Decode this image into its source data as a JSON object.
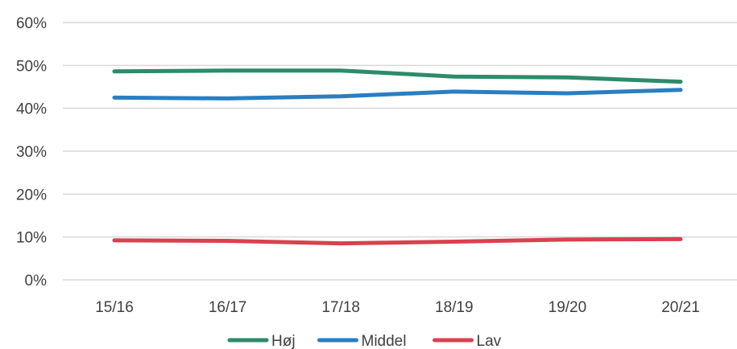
{
  "chart_data": {
    "type": "line",
    "categories": [
      "15/16",
      "16/17",
      "17/18",
      "18/19",
      "19/20",
      "20/21"
    ],
    "ylim": [
      0,
      60
    ],
    "yticks": [
      "0%",
      "10%",
      "20%",
      "30%",
      "40%",
      "50%",
      "60%"
    ],
    "grid": true,
    "legend_position": "bottom",
    "series": [
      {
        "name": "Høj",
        "color": "#2e8b6a",
        "values": [
          48.6,
          48.8,
          48.8,
          47.4,
          47.2,
          46.2
        ]
      },
      {
        "name": "Middel",
        "color": "#2a7ec1",
        "values": [
          42.5,
          42.3,
          42.8,
          43.9,
          43.5,
          44.3
        ]
      },
      {
        "name": "Lav",
        "color": "#d9414f",
        "values": [
          9.2,
          9.1,
          8.5,
          8.9,
          9.4,
          9.5
        ]
      }
    ]
  }
}
